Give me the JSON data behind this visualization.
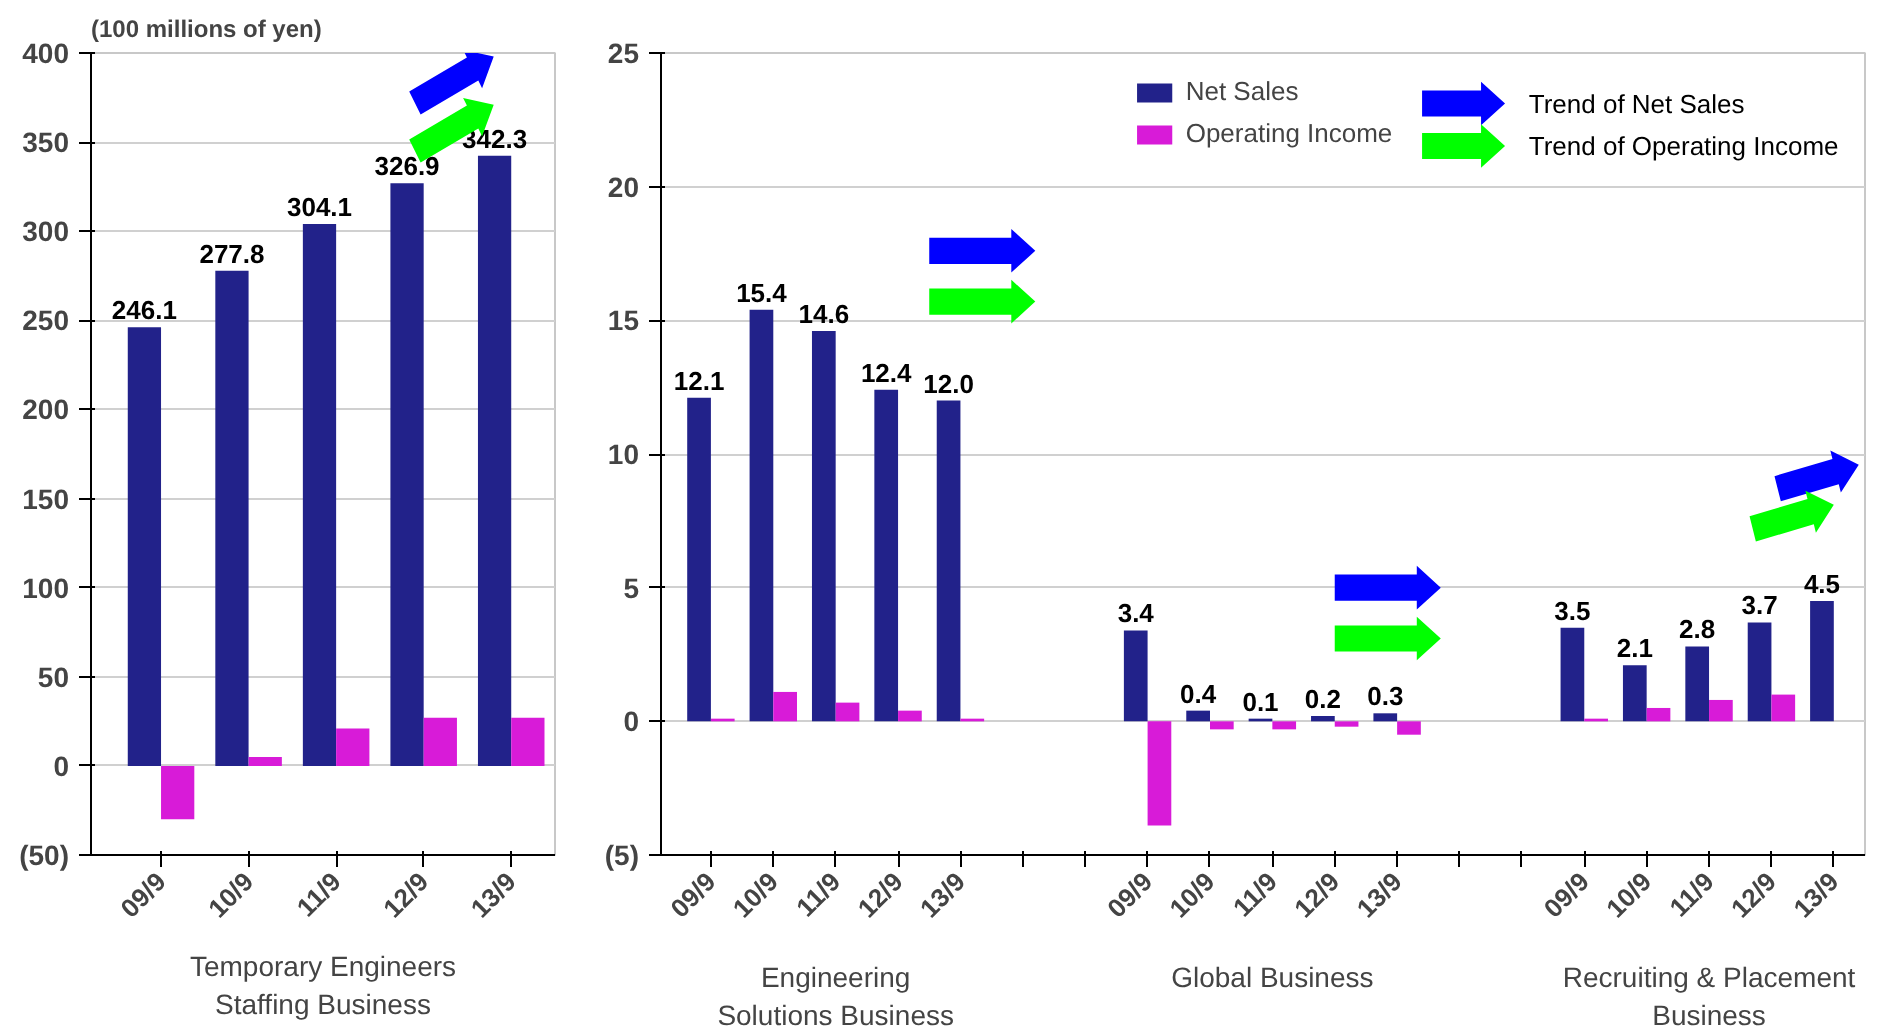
{
  "chart_data": [
    {
      "type": "bar",
      "ylabel": "(100 millions of yen)",
      "xlabel": "Temporary Engineers\nStaffing Business",
      "categories": [
        "09/9",
        "10/9",
        "11/9",
        "12/9",
        "13/9"
      ],
      "series": [
        {
          "color": "#22228a",
          "values": [
            246.1,
            277.8,
            304.1,
            326.9,
            342.3
          ],
          "value_labels": [
            "246.1",
            "277.8",
            "304.1",
            "326.9",
            "342.3"
          ]
        },
        {
          "color": "#d81bd8",
          "values": [
            -30,
            5,
            21,
            27,
            27
          ]
        }
      ],
      "ylim": [
        -50,
        400
      ],
      "yticks": [
        {
          "value": -50,
          "label": "(50)"
        },
        0,
        50,
        100,
        150,
        200,
        250,
        300,
        350,
        400
      ],
      "grid": "y"
    },
    {
      "type": "bar",
      "categories": [
        "09/9",
        "10/9",
        "11/9",
        "12/9",
        "13/9",
        null,
        null,
        "09/9",
        "10/9",
        "11/9",
        "12/9",
        "13/9",
        null,
        null,
        "09/9",
        "10/9",
        "11/9",
        "12/9",
        "13/9"
      ],
      "series": [
        {
          "name": "Net Sales",
          "color": "#22228a",
          "values": [
            12.1,
            15.4,
            14.6,
            12.4,
            12.0,
            null,
            null,
            3.4,
            0.4,
            0.1,
            0.2,
            0.3,
            null,
            null,
            3.5,
            2.1,
            2.8,
            3.7,
            4.5
          ],
          "value_labels": [
            "12.1",
            "15.4",
            "14.6",
            "12.4",
            "12.0",
            null,
            null,
            "3.4",
            "0.4",
            "0.1",
            "0.2",
            "0.3",
            null,
            null,
            "3.5",
            "2.1",
            "2.8",
            "3.7",
            "4.5"
          ]
        },
        {
          "name": "Operating Income",
          "color": "#d81bd8",
          "values": [
            0.1,
            1.1,
            0.7,
            0.4,
            0.1,
            null,
            null,
            -3.9,
            -0.3,
            -0.3,
            -0.2,
            -0.5,
            null,
            null,
            0.1,
            0.5,
            0.8,
            1.0,
            0.0
          ]
        }
      ],
      "ylim": [
        -5,
        25
      ],
      "yticks": [
        {
          "value": -5,
          "label": "(5)"
        },
        0,
        5,
        10,
        15,
        20,
        25
      ],
      "grid": "y",
      "legend": "top",
      "annotations": [
        "Engineering\nSolutions Business",
        "Global Business",
        "Recruiting & Placement\nBusiness",
        "Trend of Net Sales",
        "Trend of Operating Income"
      ]
    }
  ]
}
